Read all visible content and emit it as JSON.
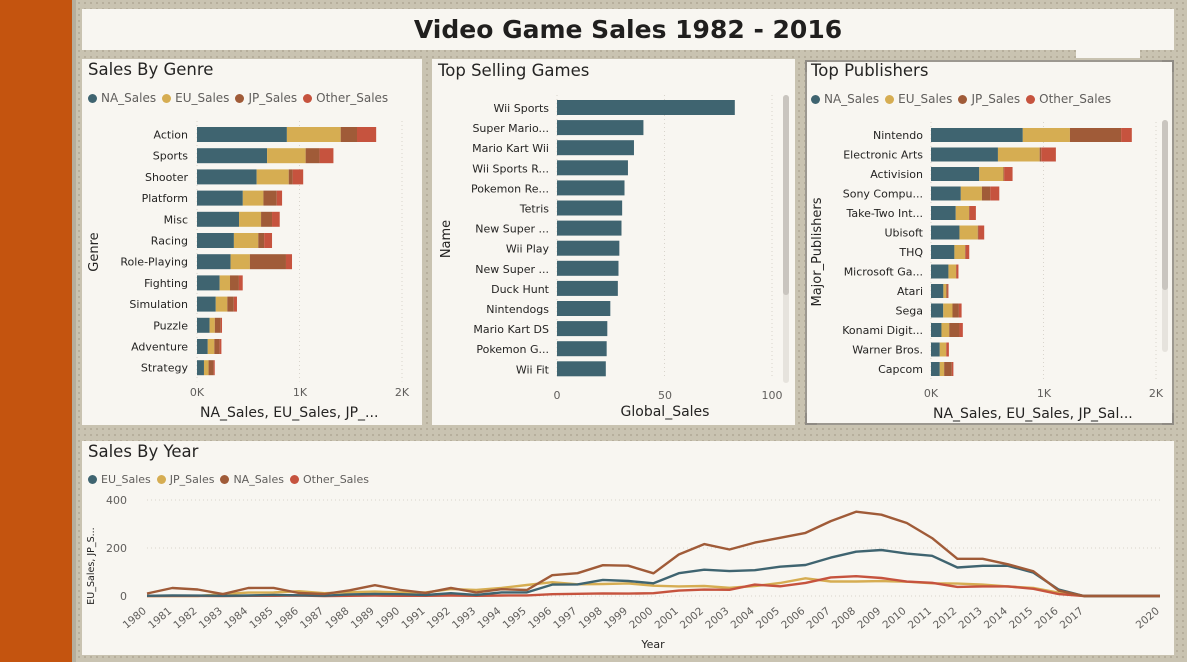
{
  "page": {
    "title": "Video Game Sales 1982 - 2016"
  },
  "colors": {
    "na": "#3f6470",
    "eu": "#d6ad52",
    "jp": "#a05b38",
    "other": "#c6533e",
    "bar": "#3f6470",
    "sidebar": "#c4540f"
  },
  "genre": {
    "title": "Sales By Genre",
    "legend": [
      "NA_Sales",
      "EU_Sales",
      "JP_Sales",
      "Other_Sales"
    ],
    "y_label": "Genre",
    "x_label": "NA_Sales, EU_Sales, JP_...",
    "x_ticks": [
      "0K",
      "1K",
      "2K"
    ]
  },
  "games": {
    "title": "Top Selling Games",
    "y_label": "Name",
    "x_label": "Global_Sales",
    "x_ticks": [
      "0",
      "50",
      "100"
    ]
  },
  "publishers": {
    "title": "Top Publishers",
    "legend": [
      "NA_Sales",
      "EU_Sales",
      "JP_Sales",
      "Other_Sales"
    ],
    "y_label": "Major_Publishers",
    "x_label": "NA_Sales, EU_Sales, JP_Sal...",
    "x_ticks": [
      "0K",
      "1K",
      "2K"
    ]
  },
  "year": {
    "title": "Sales By Year",
    "legend": [
      "EU_Sales",
      "JP_Sales",
      "NA_Sales",
      "Other_Sales"
    ],
    "y_label": "EU_Sales, JP_S...",
    "x_label": "Year",
    "y_ticks": [
      "0",
      "200",
      "400"
    ]
  },
  "chart_data": [
    {
      "type": "bar",
      "title": "Sales By Genre",
      "stacked": true,
      "orientation": "horizontal",
      "categories": [
        "Action",
        "Sports",
        "Shooter",
        "Platform",
        "Misc",
        "Racing",
        "Role-Playing",
        "Fighting",
        "Simulation",
        "Puzzle",
        "Adventure",
        "Strategy"
      ],
      "series": [
        {
          "name": "NA_Sales",
          "values": [
            877,
            684,
            582,
            447,
            410,
            360,
            328,
            221,
            183,
            123,
            105,
            68
          ]
        },
        {
          "name": "EU_Sales",
          "values": [
            525,
            376,
            313,
            201,
            215,
            238,
            188,
            101,
            113,
            51,
            64,
            45
          ]
        },
        {
          "name": "JP_Sales",
          "values": [
            159,
            136,
            38,
            130,
            107,
            57,
            352,
            87,
            63,
            57,
            52,
            49
          ]
        },
        {
          "name": "Other_Sales",
          "values": [
            187,
            135,
            103,
            52,
            75,
            77,
            59,
            37,
            31,
            13,
            17,
            11
          ]
        }
      ],
      "xlabel": "NA_Sales, EU_Sales, JP_...",
      "ylabel": "Genre",
      "xlim": [
        0,
        2000
      ],
      "legend": "top-left"
    },
    {
      "type": "bar",
      "title": "Top Selling Games",
      "orientation": "horizontal",
      "categories": [
        "Wii Sports",
        "Super Mario...",
        "Mario Kart Wii",
        "Wii Sports R...",
        "Pokemon Re...",
        "Tetris",
        "New Super ...",
        "Wii Play",
        "New Super ...",
        "Duck Hunt",
        "Nintendogs",
        "Mario Kart DS",
        "Pokemon G...",
        "Wii Fit"
      ],
      "values": [
        82.7,
        40.2,
        35.8,
        33.0,
        31.4,
        30.3,
        30.0,
        29.0,
        28.6,
        28.3,
        24.8,
        23.4,
        23.1,
        22.7
      ],
      "xlabel": "Global_Sales",
      "ylabel": "Name",
      "xlim": [
        0,
        100
      ]
    },
    {
      "type": "bar",
      "title": "Top Publishers",
      "stacked": true,
      "orientation": "horizontal",
      "categories": [
        "Nintendo",
        "Electronic Arts",
        "Activision",
        "Sony Compu...",
        "Take-Two Int...",
        "Ubisoft",
        "THQ",
        "Microsoft Ga...",
        "Atari",
        "Sega",
        "Konami Digit...",
        "Warner Bros.",
        "Capcom"
      ],
      "series": [
        {
          "name": "NA_Sales",
          "values": [
            816,
            595,
            429,
            265,
            220,
            253,
            208,
            155,
            110,
            109,
            93,
            78,
            78
          ]
        },
        {
          "name": "EU_Sales",
          "values": [
            419,
            371,
            215,
            188,
            118,
            163,
            95,
            68,
            26,
            82,
            69,
            57,
            39
          ]
        },
        {
          "name": "JP_Sales",
          "values": [
            455,
            14,
            6,
            74,
            6,
            7,
            5,
            3,
            10,
            57,
            91,
            1,
            68
          ]
        },
        {
          "name": "Other_Sales",
          "values": [
            95,
            130,
            75,
            80,
            55,
            50,
            32,
            18,
            9,
            24,
            30,
            23,
            14
          ]
        }
      ],
      "xlabel": "NA_Sales, EU_Sales, JP_Sal...",
      "ylabel": "Major_Publishers",
      "xlim": [
        0,
        2000
      ],
      "legend": "top-left"
    },
    {
      "type": "line",
      "title": "Sales By Year",
      "x": [
        1980,
        1981,
        1982,
        1983,
        1984,
        1985,
        1986,
        1987,
        1988,
        1989,
        1990,
        1991,
        1992,
        1993,
        1994,
        1995,
        1996,
        1997,
        1998,
        1999,
        2000,
        2001,
        2002,
        2003,
        2004,
        2005,
        2006,
        2007,
        2008,
        2009,
        2010,
        2011,
        2012,
        2013,
        2014,
        2015,
        2016,
        2017,
        2020
      ],
      "series": [
        {
          "name": "EU_Sales",
          "values": [
            0.7,
            1.9,
            1.7,
            0.8,
            2.1,
            4.7,
            3.0,
            1.4,
            6.6,
            8.4,
            7.6,
            4.0,
            11.7,
            4.7,
            14.9,
            14.9,
            47.3,
            48.3,
            66.9,
            62.7,
            52.8,
            94.9,
            109.7,
            103.8,
            107.3,
            122.0,
            129.2,
            160.2,
            184.4,
            191.6,
            176.7,
            167.4,
            118.8,
            125.8,
            125.7,
            97.7,
            26.8,
            0,
            0
          ]
        },
        {
          "name": "JP_Sales",
          "values": [
            0,
            0,
            0,
            8.1,
            14.3,
            14.6,
            19.8,
            11.6,
            15.8,
            18.4,
            14.9,
            14.8,
            28.9,
            25.3,
            33.9,
            45.8,
            57.4,
            48.9,
            50.0,
            52.3,
            42.8,
            39.9,
            41.8,
            34.2,
            41.7,
            54.3,
            73.7,
            60.3,
            60.3,
            61.9,
            59.5,
            53.0,
            51.8,
            47.6,
            39.5,
            33.7,
            13.7,
            0.1,
            0
          ]
        },
        {
          "name": "NA_Sales",
          "values": [
            10.6,
            33.4,
            26.9,
            7.8,
            33.3,
            33.7,
            12.5,
            8.5,
            23.9,
            45.2,
            25.5,
            12.8,
            33.9,
            15.1,
            28.2,
            24.8,
            86.8,
            94.8,
            128.4,
            126.1,
            94.5,
            173.1,
            216.2,
            193.6,
            222.6,
            242.6,
            263.1,
            312.0,
            351.4,
            338.9,
            304.2,
            241.2,
            154.9,
            154.8,
            131.9,
            102.8,
            22.7,
            0,
            0
          ]
        },
        {
          "name": "Other_Sales",
          "values": [
            0.1,
            0.3,
            0.3,
            0.1,
            0.7,
            0.9,
            1.9,
            0.2,
            0.9,
            1.5,
            0.9,
            0.7,
            1.7,
            1.0,
            1.9,
            2.6,
            7.7,
            9.1,
            11.0,
            10.1,
            11.6,
            22.7,
            26.7,
            26.0,
            47.3,
            40.6,
            54.4,
            77.6,
            82.4,
            74.9,
            59.9,
            54.8,
            37.8,
            39.9,
            40.0,
            30.0,
            7.8,
            0,
            0
          ]
        }
      ],
      "xlabel": "Year",
      "ylabel": "EU_Sales, JP_S...",
      "ylim": [
        0,
        400
      ],
      "grid": true,
      "legend": "top-left"
    }
  ]
}
